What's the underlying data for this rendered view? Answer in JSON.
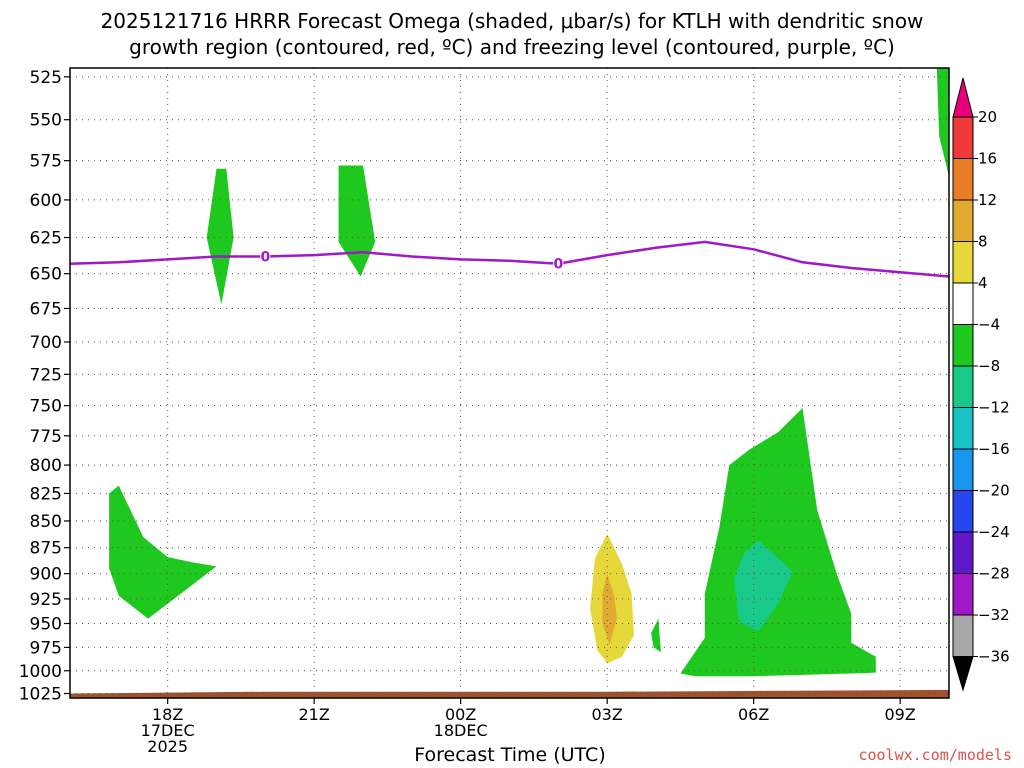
{
  "title": {
    "line1": "2025121716 HRRR Forecast Omega (shaded, μbar/s) for KTLH with dendritic snow",
    "line2": "growth region (contoured, red, ºC) and freezing level (contoured, purple, ºC)"
  },
  "credit": "coolwx.com/models",
  "chart_data": {
    "type": "contour-cross-section",
    "title": "2025121716 HRRR Forecast Omega (shaded, μbar/s) for KTLH with dendritic snow growth region (contoured, red, ºC) and freezing level (contoured, purple, ºC)",
    "xlabel": "Forecast Time (UTC)",
    "ylabel": "",
    "x_range_hours": [
      16,
      34
    ],
    "y_range_hPa": [
      520,
      1030
    ],
    "y_scale": "log",
    "grid": true,
    "y_ticks": [
      "525",
      "550",
      "575",
      "600",
      "625",
      "650",
      "675",
      "700",
      "725",
      "750",
      "775",
      "800",
      "825",
      "850",
      "875",
      "900",
      "925",
      "950",
      "975",
      "1000",
      "1025"
    ],
    "x_ticks": [
      {
        "hour": 18,
        "lines": [
          "18Z",
          "17DEC",
          "2025"
        ]
      },
      {
        "hour": 21,
        "lines": [
          "21Z"
        ]
      },
      {
        "hour": 24,
        "lines": [
          "00Z",
          "18DEC"
        ]
      },
      {
        "hour": 27,
        "lines": [
          "03Z"
        ]
      },
      {
        "hour": 30,
        "lines": [
          "06Z"
        ]
      },
      {
        "hour": 33,
        "lines": [
          "09Z"
        ]
      }
    ],
    "colorbar": {
      "labels": [
        "20",
        "16",
        "12",
        "8",
        "4",
        "−4",
        "−8",
        "−12",
        "−16",
        "−20",
        "−24",
        "−28",
        "−32",
        "−36"
      ],
      "colors": [
        "#e8007a",
        "#f03a3a",
        "#ea7d28",
        "#e2aa30",
        "#e6d83a",
        "#ffffff",
        "#1ec81e",
        "#18c98a",
        "#18c3c3",
        "#1896f0",
        "#2846f0",
        "#6018c8",
        "#a018c8",
        "#a8a8a8",
        "#000000"
      ]
    },
    "freezing_level": {
      "color": "#a018c8",
      "label": "0",
      "points": [
        [
          16,
          643
        ],
        [
          17,
          642
        ],
        [
          18,
          640
        ],
        [
          19,
          638
        ],
        [
          20,
          638
        ],
        [
          21,
          637
        ],
        [
          22,
          635
        ],
        [
          23,
          638
        ],
        [
          24,
          640
        ],
        [
          25,
          641
        ],
        [
          26,
          643
        ],
        [
          27,
          637
        ],
        [
          28,
          632
        ],
        [
          29,
          628
        ],
        [
          30,
          633
        ],
        [
          31,
          642
        ],
        [
          32,
          646
        ],
        [
          33,
          649
        ],
        [
          34,
          652
        ]
      ]
    },
    "surface": {
      "color": "#a0522d",
      "pressure_hPa": [
        1025,
        1023,
        1021
      ]
    },
    "omega_regions": [
      {
        "level": "-4 to -8",
        "color": "#1ec81e",
        "points": [
          [
            19.0,
            580
          ],
          [
            18.8,
            625
          ],
          [
            19.1,
            672
          ],
          [
            19.35,
            625
          ],
          [
            19.2,
            580
          ]
        ]
      },
      {
        "level": "-4 to -8",
        "color": "#1ec81e",
        "points": [
          [
            21.5,
            578
          ],
          [
            22.0,
            578
          ],
          [
            22.25,
            628
          ],
          [
            21.95,
            652
          ],
          [
            21.5,
            628
          ]
        ]
      },
      {
        "level": "-4 to -8",
        "color": "#1ec81e",
        "points": [
          [
            16.8,
            825
          ],
          [
            17.0,
            818
          ],
          [
            17.5,
            865
          ],
          [
            18.0,
            884
          ],
          [
            18.5,
            889
          ],
          [
            19.0,
            893
          ],
          [
            17.6,
            945
          ],
          [
            17.0,
            922
          ],
          [
            16.8,
            895
          ]
        ]
      },
      {
        "level": "-4 to -8",
        "color": "#1ec81e",
        "points": [
          [
            27.9,
            960
          ],
          [
            28.05,
            945
          ],
          [
            28.1,
            980
          ],
          [
            27.95,
            975
          ]
        ]
      },
      {
        "level": "-4 to -8",
        "color": "#1ec81e",
        "points": [
          [
            34.0,
            520
          ],
          [
            33.75,
            520
          ],
          [
            33.8,
            560
          ],
          [
            34.0,
            585
          ]
        ]
      },
      {
        "level": "-4 to -8",
        "color": "#1ec81e",
        "points": [
          [
            28.5,
            1003
          ],
          [
            29.0,
            965
          ],
          [
            29.0,
            920
          ],
          [
            29.3,
            855
          ],
          [
            29.5,
            800
          ],
          [
            29.9,
            787
          ],
          [
            30.5,
            772
          ],
          [
            31.0,
            752
          ],
          [
            31.3,
            840
          ],
          [
            31.7,
            900
          ],
          [
            32.0,
            940
          ],
          [
            32.0,
            970
          ],
          [
            32.5,
            985
          ],
          [
            32.5,
            1002
          ],
          [
            32.0,
            1003
          ],
          [
            30.0,
            1006
          ],
          [
            28.8,
            1006
          ]
        ]
      },
      {
        "level": "-8 to -12",
        "color": "#18c98a",
        "points": [
          [
            29.6,
            905
          ],
          [
            29.8,
            880
          ],
          [
            30.1,
            868
          ],
          [
            30.8,
            898
          ],
          [
            30.5,
            930
          ],
          [
            30.1,
            958
          ],
          [
            29.7,
            948
          ]
        ]
      },
      {
        "level": "4 to 8",
        "color": "#e6d83a",
        "points": [
          [
            26.65,
            935
          ],
          [
            26.75,
            885
          ],
          [
            27.0,
            862
          ],
          [
            27.3,
            890
          ],
          [
            27.5,
            920
          ],
          [
            27.55,
            962
          ],
          [
            27.3,
            985
          ],
          [
            27.0,
            992
          ],
          [
            26.8,
            978
          ]
        ]
      },
      {
        "level": "8 to 12",
        "color": "#e2aa30",
        "points": [
          [
            26.9,
            920
          ],
          [
            27.0,
            900
          ],
          [
            27.15,
            923
          ],
          [
            27.2,
            945
          ],
          [
            27.05,
            972
          ],
          [
            26.9,
            950
          ]
        ]
      }
    ]
  }
}
